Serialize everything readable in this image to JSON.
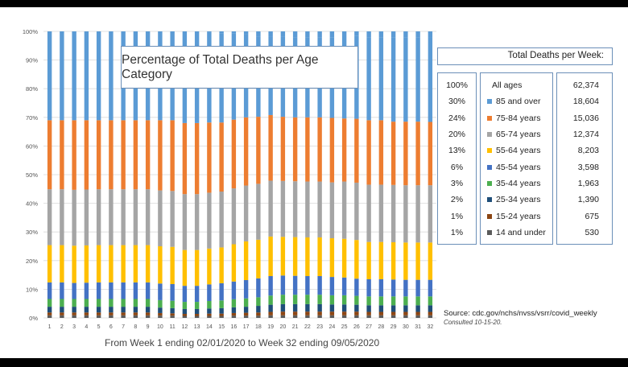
{
  "chart_data": {
    "type": "bar",
    "stacked": true,
    "title": "Percentage of Total  Deaths per Age Category",
    "xlabel": "From Week 1 ending 02/01/2020 to Week 32 ending 09/05/2020",
    "categories": [
      "1",
      "2",
      "3",
      "4",
      "5",
      "6",
      "7",
      "8",
      "9",
      "10",
      "11",
      "12",
      "13",
      "14",
      "15",
      "16",
      "17",
      "18",
      "19",
      "20",
      "21",
      "22",
      "23",
      "24",
      "25",
      "26",
      "27",
      "28",
      "29",
      "30",
      "31",
      "32"
    ],
    "y_ticks": [
      "0%",
      "10%",
      "20%",
      "30%",
      "40%",
      "50%",
      "60%",
      "70%",
      "80%",
      "90%",
      "100%"
    ],
    "ylim": [
      0,
      100
    ],
    "grid": true,
    "series": [
      {
        "name": "14 and under",
        "color": "#5a5a5a",
        "values": [
          0.9,
          0.9,
          0.9,
          0.9,
          0.9,
          0.9,
          0.9,
          0.9,
          0.9,
          0.8,
          0.8,
          0.7,
          0.7,
          0.7,
          0.7,
          0.8,
          0.8,
          0.8,
          0.9,
          0.9,
          0.9,
          0.9,
          0.9,
          0.9,
          0.9,
          0.9,
          0.9,
          0.9,
          0.9,
          0.9,
          0.9,
          0.9
        ]
      },
      {
        "name": "15-24 years",
        "color": "#8b4513",
        "values": [
          1.0,
          1.0,
          1.0,
          1.0,
          1.0,
          1.0,
          1.0,
          1.0,
          1.0,
          0.9,
          0.8,
          0.7,
          0.7,
          0.8,
          0.8,
          0.9,
          1.0,
          1.1,
          1.2,
          1.3,
          1.3,
          1.3,
          1.3,
          1.3,
          1.3,
          1.3,
          1.2,
          1.2,
          1.2,
          1.2,
          1.2,
          1.2
        ]
      },
      {
        "name": "25-34 years",
        "color": "#1f4e79",
        "values": [
          2.0,
          2.0,
          2.0,
          2.0,
          2.0,
          2.0,
          2.0,
          2.0,
          2.0,
          1.9,
          1.8,
          1.7,
          1.7,
          1.8,
          1.9,
          2.0,
          2.1,
          2.3,
          2.5,
          2.6,
          2.6,
          2.6,
          2.6,
          2.5,
          2.5,
          2.4,
          2.3,
          2.3,
          2.3,
          2.3,
          2.3,
          2.3
        ]
      },
      {
        "name": "35-44 years",
        "color": "#4caf50",
        "values": [
          2.7,
          2.7,
          2.7,
          2.7,
          2.7,
          2.7,
          2.7,
          2.7,
          2.7,
          2.6,
          2.6,
          2.5,
          2.5,
          2.6,
          2.7,
          2.8,
          2.9,
          3.0,
          3.2,
          3.3,
          3.3,
          3.3,
          3.3,
          3.2,
          3.2,
          3.1,
          3.1,
          3.1,
          3.1,
          3.1,
          3.1,
          3.1
        ]
      },
      {
        "name": "45-54 years",
        "color": "#4472c4",
        "values": [
          5.8,
          5.8,
          5.6,
          5.7,
          5.8,
          5.8,
          5.8,
          5.8,
          5.8,
          5.8,
          5.8,
          5.6,
          5.6,
          5.8,
          6.0,
          6.2,
          6.4,
          6.6,
          6.8,
          6.7,
          6.6,
          6.5,
          6.5,
          6.4,
          6.2,
          6.0,
          6.0,
          6.0,
          5.9,
          5.8,
          5.8,
          5.8
        ]
      },
      {
        "name": "55-64 years",
        "color": "#ffc000",
        "values": [
          13.0,
          13.0,
          13.0,
          13.0,
          13.0,
          13.0,
          13.0,
          13.0,
          13.0,
          13.0,
          13.0,
          12.5,
          12.5,
          12.5,
          12.5,
          13.0,
          13.5,
          13.5,
          13.8,
          13.5,
          13.5,
          13.5,
          13.5,
          13.5,
          13.5,
          13.5,
          13.0,
          13.0,
          13.0,
          13.0,
          13.0,
          13.0
        ]
      },
      {
        "name": "65-74 years",
        "color": "#a5a5a5",
        "values": [
          19.5,
          19.5,
          19.5,
          19.5,
          19.5,
          19.5,
          19.5,
          19.5,
          19.5,
          19.5,
          19.5,
          19.5,
          19.5,
          19.5,
          19.5,
          19.5,
          19.5,
          19.5,
          19.5,
          19.5,
          19.5,
          19.5,
          19.5,
          19.5,
          20.0,
          20.0,
          20.0,
          20.0,
          20.0,
          20.0,
          20.0,
          20.0
        ]
      },
      {
        "name": "75-84 years",
        "color": "#ed7d31",
        "values": [
          24.1,
          24.1,
          24.3,
          24.2,
          24.1,
          24.1,
          24.1,
          24.1,
          24.1,
          24.5,
          24.7,
          24.8,
          24.8,
          24.5,
          24.1,
          24.0,
          23.8,
          23.4,
          22.9,
          22.4,
          22.3,
          22.4,
          22.4,
          22.5,
          22.0,
          22.3,
          22.5,
          22.5,
          22.1,
          22.2,
          22.2,
          22.1
        ]
      },
      {
        "name": "85 and over",
        "color": "#5b9bd5",
        "values": [
          31.0,
          31.0,
          31.0,
          31.0,
          31.0,
          31.0,
          31.0,
          31.0,
          31.0,
          31.0,
          31.0,
          32.0,
          32.0,
          31.5,
          31.0,
          30.0,
          29.0,
          28.0,
          27.5,
          28.0,
          28.0,
          28.0,
          28.0,
          28.0,
          29.0,
          29.0,
          29.0,
          29.0,
          29.5,
          29.5,
          29.5,
          29.5
        ]
      }
    ]
  },
  "panel": {
    "header": "Total Deaths per Week:",
    "age_title": "All ages",
    "rows": [
      {
        "pct": "100%",
        "age": "All ages",
        "deaths": "62,374",
        "color": ""
      },
      {
        "pct": "30%",
        "age": "85 and over",
        "deaths": "18,604",
        "color": "#5b9bd5"
      },
      {
        "pct": "24%",
        "age": "75-84 years",
        "deaths": "15,036",
        "color": "#ed7d31"
      },
      {
        "pct": "20%",
        "age": "65-74 years",
        "deaths": "12,374",
        "color": "#a5a5a5"
      },
      {
        "pct": "13%",
        "age": "55-64 years",
        "deaths": "8,203",
        "color": "#ffc000"
      },
      {
        "pct": "6%",
        "age": "45-54 years",
        "deaths": "3,598",
        "color": "#4472c4"
      },
      {
        "pct": "3%",
        "age": "35-44 years",
        "deaths": "1,963",
        "color": "#4caf50"
      },
      {
        "pct": "2%",
        "age": "25-34 years",
        "deaths": "1,390",
        "color": "#1f4e79"
      },
      {
        "pct": "1%",
        "age": "15-24 years",
        "deaths": "675",
        "color": "#8b4513"
      },
      {
        "pct": "1%",
        "age": "14 and under",
        "deaths": "530",
        "color": "#5a5a5a"
      }
    ]
  },
  "source": {
    "text": "Source: cdc.gov/nchs/nvss/vsrr/covid_weekly",
    "consulted": "Consulted 10-15-20."
  }
}
